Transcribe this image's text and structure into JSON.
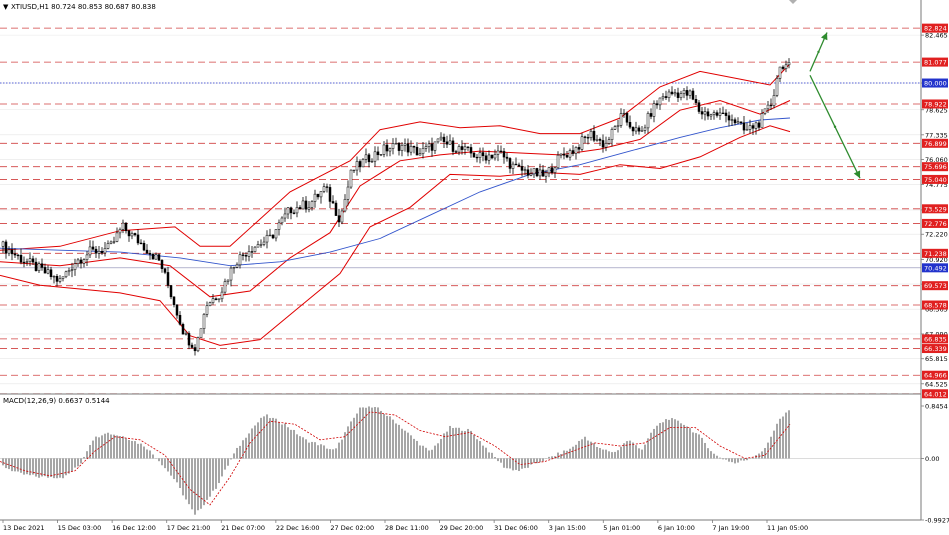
{
  "header": {
    "symbol_info": "XTIUSD,H1  80.724 80.853 80.687 80.838"
  },
  "macd_header": {
    "label": "MACD(12,26,9) 0.6637 0.5144"
  },
  "colors": {
    "background": "#ffffff",
    "candle": "#000000",
    "bollinger": "#e00000",
    "ma": "#3355cc",
    "level_line": "#d04040",
    "blue_level": "#2233cc",
    "arrow": "#2e8b2e",
    "macd_hist": "#808080",
    "macd_signal": "#d00000",
    "grid": "#e6e6e6"
  },
  "chart_data": [
    {
      "type": "candlestick",
      "instrument": "XTIUSD,H1",
      "ylim": [
        64.0,
        83.5
      ],
      "price_ticks": [
        "82.465",
        "80.000",
        "78.625",
        "77.335",
        "76.060",
        "74.775",
        "73.470",
        "72.220",
        "70.920",
        "69.655",
        "68.365",
        "67.090",
        "65.815",
        "64.525"
      ],
      "levels_red": [
        "82.824",
        "81.077",
        "78.922",
        "76.899",
        "75.696",
        "75.040",
        "73.529",
        "72.776",
        "71.238",
        "69.573",
        "68.578",
        "66.835",
        "66.339",
        "64.966",
        "64.012"
      ],
      "level_blue": "80.000",
      "level_blue_label": "80.000",
      "level_marker_label": "70.492",
      "x_labels": [
        "13 Dec 2021",
        "15 Dec 03:00",
        "16 Dec 12:00",
        "17 Dec 21:00",
        "21 Dec 07:00",
        "22 Dec 16:00",
        "27 Dec 02:00",
        "28 Dec 11:00",
        "29 Dec 20:00",
        "31 Dec 06:00",
        "3 Jan 15:00",
        "5 Jan 01:00",
        "6 Jan 10:00",
        "7 Jan 19:00",
        "11 Jan 05:00"
      ],
      "path": [
        [
          0,
          71.7
        ],
        [
          20,
          71.0
        ],
        [
          40,
          70.4
        ],
        [
          60,
          69.8
        ],
        [
          75,
          70.8
        ],
        [
          90,
          71.3
        ],
        [
          110,
          71.5
        ],
        [
          122,
          72.6
        ],
        [
          140,
          71.8
        ],
        [
          160,
          70.8
        ],
        [
          172,
          69.0
        ],
        [
          185,
          67.0
        ],
        [
          196,
          66.4
        ],
        [
          206,
          68.6
        ],
        [
          220,
          69.2
        ],
        [
          235,
          70.8
        ],
        [
          250,
          71.5
        ],
        [
          270,
          72.0
        ],
        [
          290,
          73.5
        ],
        [
          310,
          73.8
        ],
        [
          325,
          74.6
        ],
        [
          340,
          73.0
        ],
        [
          352,
          75.5
        ],
        [
          370,
          76.2
        ],
        [
          385,
          76.6
        ],
        [
          400,
          76.8
        ],
        [
          420,
          76.4
        ],
        [
          440,
          77.0
        ],
        [
          460,
          76.6
        ],
        [
          480,
          76.2
        ],
        [
          500,
          76.4
        ],
        [
          515,
          75.6
        ],
        [
          530,
          75.4
        ],
        [
          545,
          75.2
        ],
        [
          560,
          76.2
        ],
        [
          575,
          76.6
        ],
        [
          590,
          77.4
        ],
        [
          605,
          76.8
        ],
        [
          622,
          78.3
        ],
        [
          640,
          77.3
        ],
        [
          652,
          78.6
        ],
        [
          662,
          79.3
        ],
        [
          675,
          79.5
        ],
        [
          690,
          79.4
        ],
        [
          700,
          78.5
        ],
        [
          715,
          78.4
        ],
        [
          730,
          78.3
        ],
        [
          745,
          77.5
        ],
        [
          760,
          78.0
        ],
        [
          772,
          79.0
        ],
        [
          778,
          80.6
        ],
        [
          783,
          81.0
        ],
        [
          788,
          80.8
        ]
      ],
      "bollinger_upper": [
        [
          0,
          71.4
        ],
        [
          60,
          71.6
        ],
        [
          120,
          72.4
        ],
        [
          175,
          72.6
        ],
        [
          200,
          71.6
        ],
        [
          230,
          71.6
        ],
        [
          260,
          73.0
        ],
        [
          290,
          74.4
        ],
        [
          320,
          75.2
        ],
        [
          350,
          76.0
        ],
        [
          380,
          77.6
        ],
        [
          420,
          78.0
        ],
        [
          460,
          77.7
        ],
        [
          500,
          77.8
        ],
        [
          540,
          77.4
        ],
        [
          580,
          77.4
        ],
        [
          620,
          78.2
        ],
        [
          660,
          79.8
        ],
        [
          700,
          80.6
        ],
        [
          740,
          80.2
        ],
        [
          770,
          79.9
        ],
        [
          790,
          81.0
        ]
      ],
      "bollinger_lower": [
        [
          0,
          70.1
        ],
        [
          40,
          69.6
        ],
        [
          80,
          69.4
        ],
        [
          120,
          69.2
        ],
        [
          160,
          68.8
        ],
        [
          190,
          67.0
        ],
        [
          220,
          66.5
        ],
        [
          260,
          66.8
        ],
        [
          300,
          68.5
        ],
        [
          340,
          70.2
        ],
        [
          370,
          72.6
        ],
        [
          410,
          73.6
        ],
        [
          450,
          75.3
        ],
        [
          500,
          75.2
        ],
        [
          540,
          75.4
        ],
        [
          580,
          75.3
        ],
        [
          620,
          75.8
        ],
        [
          660,
          75.6
        ],
        [
          700,
          76.2
        ],
        [
          740,
          77.2
        ],
        [
          770,
          77.8
        ],
        [
          790,
          77.5
        ]
      ],
      "bollinger_middle": [
        [
          0,
          70.8
        ],
        [
          60,
          70.6
        ],
        [
          120,
          71.0
        ],
        [
          170,
          70.6
        ],
        [
          210,
          69.0
        ],
        [
          250,
          69.3
        ],
        [
          290,
          71.0
        ],
        [
          330,
          72.3
        ],
        [
          360,
          74.7
        ],
        [
          400,
          76.0
        ],
        [
          440,
          76.3
        ],
        [
          480,
          76.5
        ],
        [
          520,
          76.4
        ],
        [
          560,
          76.3
        ],
        [
          600,
          76.6
        ],
        [
          640,
          77.1
        ],
        [
          680,
          78.6
        ],
        [
          720,
          79.1
        ],
        [
          760,
          78.4
        ],
        [
          790,
          79.1
        ]
      ],
      "moving_average": [
        [
          0,
          71.5
        ],
        [
          60,
          71.4
        ],
        [
          120,
          71.3
        ],
        [
          180,
          71.0
        ],
        [
          230,
          70.6
        ],
        [
          280,
          70.8
        ],
        [
          330,
          71.3
        ],
        [
          380,
          72.0
        ],
        [
          430,
          73.2
        ],
        [
          480,
          74.4
        ],
        [
          530,
          75.3
        ],
        [
          580,
          75.8
        ],
        [
          630,
          76.5
        ],
        [
          680,
          77.2
        ],
        [
          720,
          77.7
        ],
        [
          760,
          78.1
        ],
        [
          790,
          78.2
        ]
      ],
      "arrow_up": [
        [
          810,
          80.6
        ],
        [
          827,
          82.6
        ]
      ],
      "arrow_down": [
        [
          810,
          80.4
        ],
        [
          860,
          75.1
        ]
      ]
    },
    {
      "type": "bar",
      "name": "MACD(12,26,9)",
      "ylim": [
        -0.9927,
        0.8454
      ],
      "y_ticks": [
        "0.8454",
        "0.00",
        "-0.9927"
      ],
      "histogram_points": [
        [
          0,
          -0.1
        ],
        [
          20,
          -0.25
        ],
        [
          40,
          -0.3
        ],
        [
          65,
          -0.3
        ],
        [
          80,
          -0.1
        ],
        [
          92,
          0.3
        ],
        [
          105,
          0.42
        ],
        [
          125,
          0.35
        ],
        [
          145,
          0.2
        ],
        [
          160,
          -0.05
        ],
        [
          175,
          -0.35
        ],
        [
          195,
          -0.92
        ],
        [
          215,
          -0.5
        ],
        [
          235,
          0.1
        ],
        [
          250,
          0.45
        ],
        [
          265,
          0.7
        ],
        [
          285,
          0.55
        ],
        [
          305,
          0.3
        ],
        [
          320,
          0.22
        ],
        [
          335,
          0.12
        ],
        [
          348,
          0.5
        ],
        [
          362,
          0.85
        ],
        [
          378,
          0.8
        ],
        [
          395,
          0.6
        ],
        [
          415,
          0.3
        ],
        [
          430,
          0.1
        ],
        [
          450,
          0.5
        ],
        [
          470,
          0.45
        ],
        [
          490,
          0.1
        ],
        [
          505,
          -0.15
        ],
        [
          520,
          -0.2
        ],
        [
          540,
          -0.05
        ],
        [
          555,
          0.05
        ],
        [
          570,
          0.15
        ],
        [
          585,
          0.35
        ],
        [
          600,
          0.15
        ],
        [
          615,
          0.1
        ],
        [
          628,
          0.3
        ],
        [
          642,
          0.15
        ],
        [
          655,
          0.5
        ],
        [
          668,
          0.65
        ],
        [
          685,
          0.55
        ],
        [
          700,
          0.35
        ],
        [
          715,
          0.05
        ],
        [
          735,
          -0.08
        ],
        [
          750,
          0.0
        ],
        [
          765,
          0.15
        ],
        [
          778,
          0.6
        ],
        [
          790,
          0.78
        ]
      ],
      "signal_line": [
        [
          0,
          -0.05
        ],
        [
          25,
          -0.2
        ],
        [
          50,
          -0.28
        ],
        [
          75,
          -0.2
        ],
        [
          95,
          0.12
        ],
        [
          115,
          0.35
        ],
        [
          140,
          0.3
        ],
        [
          165,
          0.05
        ],
        [
          190,
          -0.5
        ],
        [
          210,
          -0.75
        ],
        [
          230,
          -0.3
        ],
        [
          250,
          0.25
        ],
        [
          270,
          0.6
        ],
        [
          295,
          0.55
        ],
        [
          320,
          0.3
        ],
        [
          345,
          0.35
        ],
        [
          370,
          0.75
        ],
        [
          395,
          0.7
        ],
        [
          420,
          0.45
        ],
        [
          445,
          0.35
        ],
        [
          470,
          0.42
        ],
        [
          495,
          0.2
        ],
        [
          520,
          -0.1
        ],
        [
          545,
          -0.05
        ],
        [
          570,
          0.1
        ],
        [
          595,
          0.25
        ],
        [
          620,
          0.2
        ],
        [
          645,
          0.25
        ],
        [
          670,
          0.5
        ],
        [
          695,
          0.5
        ],
        [
          720,
          0.2
        ],
        [
          745,
          0.0
        ],
        [
          765,
          0.05
        ],
        [
          790,
          0.55
        ]
      ]
    }
  ]
}
